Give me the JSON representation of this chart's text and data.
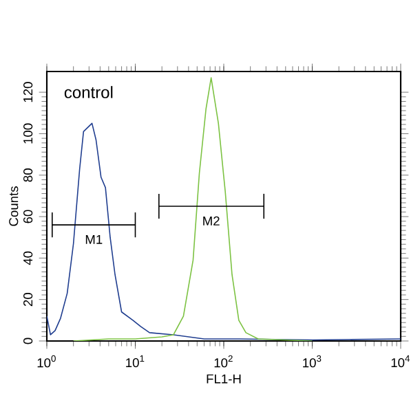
{
  "chart_data": {
    "type": "line",
    "xlabel": "FL1-H",
    "ylabel": "Counts",
    "log": "x",
    "xlim": [
      1,
      10000
    ],
    "ylim": [
      0,
      130
    ],
    "xticks": [
      {
        "value": 1,
        "label": "10$^{0}$"
      },
      {
        "value": 10,
        "label": "10$^{1}$"
      },
      {
        "value": 100,
        "label": "10$^{2}$"
      },
      {
        "value": 1000,
        "label": "10$^{3}$"
      },
      {
        "value": 10000,
        "label": "10$^{4}$"
      }
    ],
    "yticks": [
      0,
      20,
      40,
      60,
      80,
      100,
      120
    ],
    "grid": false,
    "annotations": [
      "control",
      {
        "text": "M1",
        "x": 3.4,
        "y": 56
      },
      {
        "text": "M2",
        "x": 72,
        "y": 65
      }
    ],
    "series": [
      {
        "color": "#1f3d8f",
        "x": [
          1.0,
          1.1,
          1.24,
          1.43,
          1.7,
          2.0,
          2.35,
          2.6,
          3.24,
          3.6,
          4.1,
          4.6,
          5.2,
          5.9,
          7.0,
          9.4,
          11.5,
          14.5,
          27,
          60,
          150,
          1000,
          10000
        ],
        "values": [
          12,
          3,
          5,
          11,
          23,
          47,
          83,
          101,
          105,
          97,
          79,
          74,
          50,
          32,
          14,
          10,
          7,
          4,
          3,
          1,
          1,
          0.5,
          1
        ]
      },
      {
        "color": "#7cc242",
        "x": [
          2,
          5,
          10,
          20,
          27,
          35,
          45,
          53,
          63,
          72,
          87,
          104,
          124,
          148,
          178,
          245,
          1000
        ],
        "values": [
          0,
          1,
          1,
          2,
          3,
          12,
          39,
          81,
          112,
          127,
          105,
          72,
          32,
          10,
          4,
          1,
          0
        ]
      },
      {
        "type": "line",
        "color": "#000000",
        "x": [
          1.15,
          10
        ],
        "values": [
          56,
          56
        ],
        "errors": [
          [
            50,
            62
          ],
          [
            50,
            62
          ]
        ]
      },
      {
        "type": "line",
        "color": "#000000",
        "x": [
          18.5,
          284
        ],
        "values": [
          65,
          65
        ],
        "errors": [
          [
            59,
            71
          ],
          [
            59,
            71
          ]
        ]
      }
    ]
  }
}
